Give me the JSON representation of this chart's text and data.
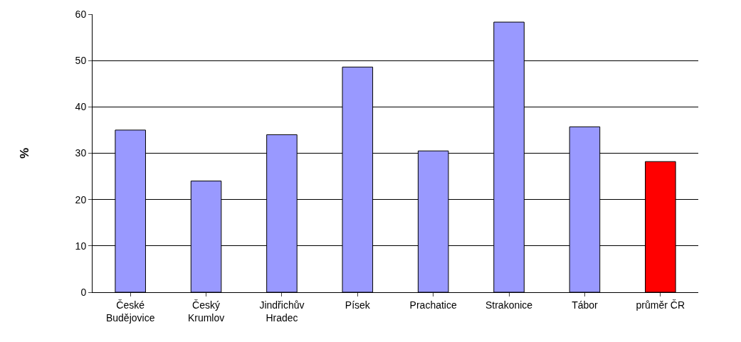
{
  "chart_data": {
    "type": "bar",
    "categories": [
      "České\nBudějovice",
      "Český\nKrumlov",
      "Jindřichův\nHradec",
      "Písek",
      "Prachatice",
      "Strakonice",
      "Tábor",
      "průměr ČR"
    ],
    "values": [
      35,
      24,
      34,
      48.6,
      30.5,
      58.3,
      35.7,
      28.2
    ],
    "colors": [
      "#9999ff",
      "#9999ff",
      "#9999ff",
      "#9999ff",
      "#9999ff",
      "#9999ff",
      "#9999ff",
      "#ff0000"
    ],
    "ylabel": "%",
    "ylim": [
      0,
      60
    ],
    "yticks": [
      0,
      10,
      20,
      30,
      40,
      50,
      60
    ],
    "grid": "y"
  }
}
